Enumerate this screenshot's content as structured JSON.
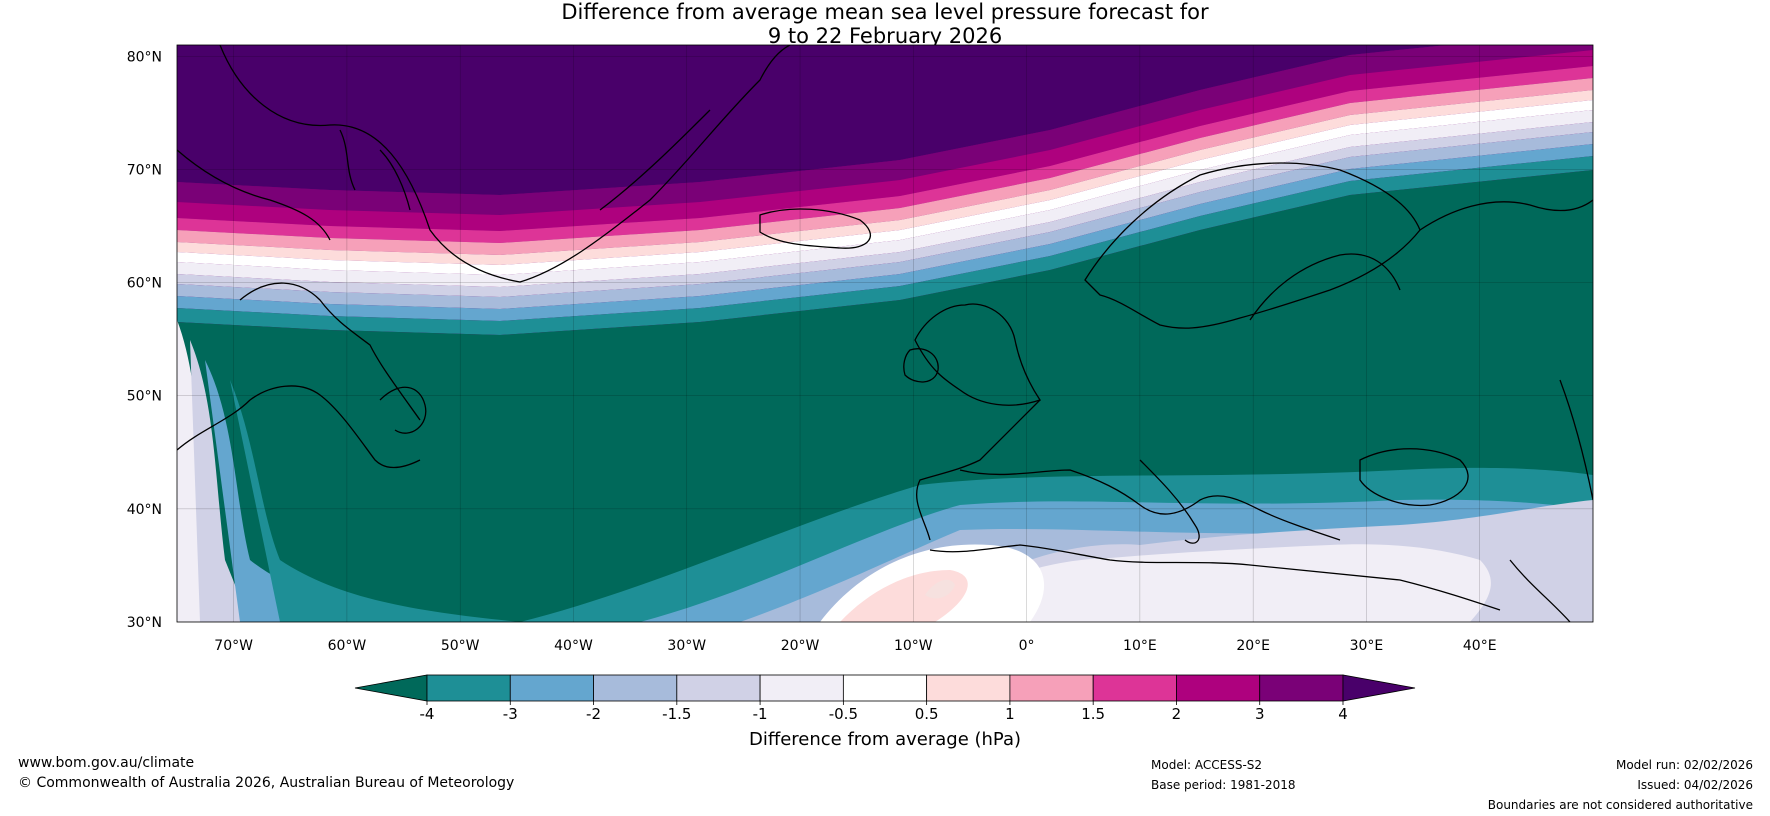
{
  "title": {
    "line1": "Difference from average mean sea level pressure forecast for",
    "line2": "9 to 22 February 2026"
  },
  "map": {
    "lat_labels": [
      "80°N",
      "70°N",
      "60°N",
      "50°N",
      "40°N",
      "30°N"
    ],
    "lat_values": [
      80,
      70,
      60,
      50,
      40,
      30
    ],
    "lon_labels": [
      "70°W",
      "60°W",
      "50°W",
      "40°W",
      "30°W",
      "20°W",
      "10°W",
      "0°",
      "10°E",
      "20°E",
      "30°E",
      "40°E"
    ],
    "lon_values": [
      -70,
      -60,
      -50,
      -40,
      -30,
      -20,
      -10,
      0,
      10,
      20,
      30,
      40
    ],
    "extent": {
      "lon_min": -75,
      "lon_max": 50,
      "lat_min": 30,
      "lat_max": 81
    }
  },
  "colorbar": {
    "ticks": [
      "-4",
      "-3",
      "-2",
      "-1.5",
      "-1",
      "-0.5",
      "0.5",
      "1",
      "1.5",
      "2",
      "3",
      "4"
    ],
    "colors": [
      "#00695a",
      "#1e8f96",
      "#64a6cf",
      "#a7bbdb",
      "#d0d1e6",
      "#f1eef6",
      "#ffffff",
      "#fddcdb",
      "#f6a0b9",
      "#dd3497",
      "#ae017e",
      "#7a0177",
      "#49006a"
    ],
    "label": "Difference from average (hPa)"
  },
  "footer": {
    "url": "www.bom.gov.au/climate",
    "copyright": "© Commonwealth of Australia 2026, Australian Bureau of Meteorology",
    "model": "Model: ACCESS-S2",
    "base_period": "Base period: 1981-2018",
    "model_run": "Model run: 02/02/2026",
    "issued": "Issued: 04/02/2026",
    "disclaimer": "Boundaries are not considered authoritative"
  }
}
